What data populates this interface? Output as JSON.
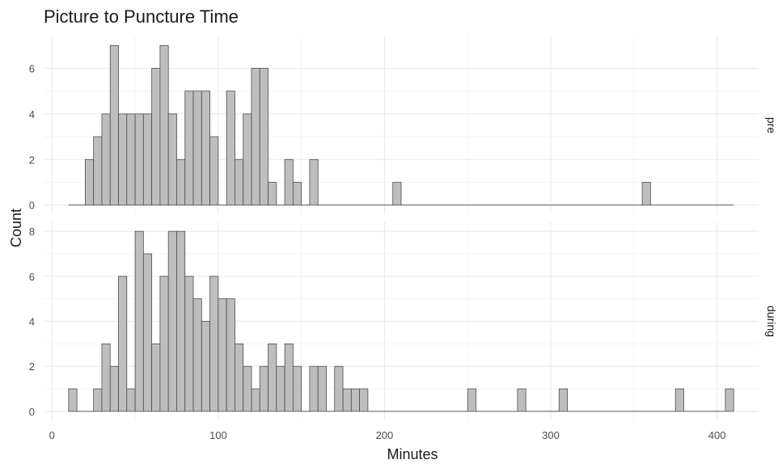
{
  "chart_data": {
    "type": "bar",
    "title": "Picture to Puncture Time",
    "xlabel": "Minutes",
    "ylabel": "Count",
    "binwidth": 5,
    "x_start": 10,
    "xlim": [
      -5,
      425
    ],
    "xticks": [
      0,
      100,
      200,
      300,
      400
    ],
    "grid": true,
    "facet_layout": "rows",
    "colors": {
      "bar_fill": "#bebebe",
      "bar_stroke": "#4d4d4d",
      "grid": "#ebebeb"
    },
    "panels": [
      {
        "name": "pre",
        "ylim": [
          -0.4,
          7.4
        ],
        "yticks": [
          0,
          2,
          4,
          6
        ],
        "values": [
          0,
          0,
          2,
          3,
          4,
          7,
          4,
          4,
          4,
          4,
          6,
          7,
          4,
          2,
          5,
          5,
          5,
          3,
          0,
          5,
          2,
          4,
          6,
          6,
          1,
          0,
          2,
          1,
          0,
          2,
          0,
          0,
          0,
          0,
          0,
          0,
          0,
          0,
          0,
          1,
          0,
          0,
          0,
          0,
          0,
          0,
          0,
          0,
          0,
          0,
          0,
          0,
          0,
          0,
          0,
          0,
          0,
          0,
          0,
          0,
          0,
          0,
          0,
          0,
          0,
          0,
          0,
          0,
          0,
          1,
          0,
          0,
          0,
          0,
          0,
          0,
          0,
          0,
          0,
          0
        ]
      },
      {
        "name": "during",
        "ylim": [
          -0.4,
          8.4
        ],
        "yticks": [
          0,
          2,
          4,
          6,
          8
        ],
        "values": [
          1,
          0,
          0,
          1,
          3,
          2,
          6,
          1,
          8,
          7,
          3,
          6,
          8,
          8,
          6,
          5,
          4,
          6,
          5,
          5,
          3,
          2,
          1,
          2,
          3,
          2,
          3,
          2,
          0,
          2,
          2,
          0,
          2,
          1,
          1,
          1,
          0,
          0,
          0,
          0,
          0,
          0,
          0,
          0,
          0,
          0,
          0,
          0,
          1,
          0,
          0,
          0,
          0,
          0,
          1,
          0,
          0,
          0,
          0,
          1,
          0,
          0,
          0,
          0,
          0,
          0,
          0,
          0,
          0,
          0,
          0,
          0,
          0,
          1,
          0,
          0,
          0,
          0,
          0,
          1
        ]
      }
    ]
  }
}
